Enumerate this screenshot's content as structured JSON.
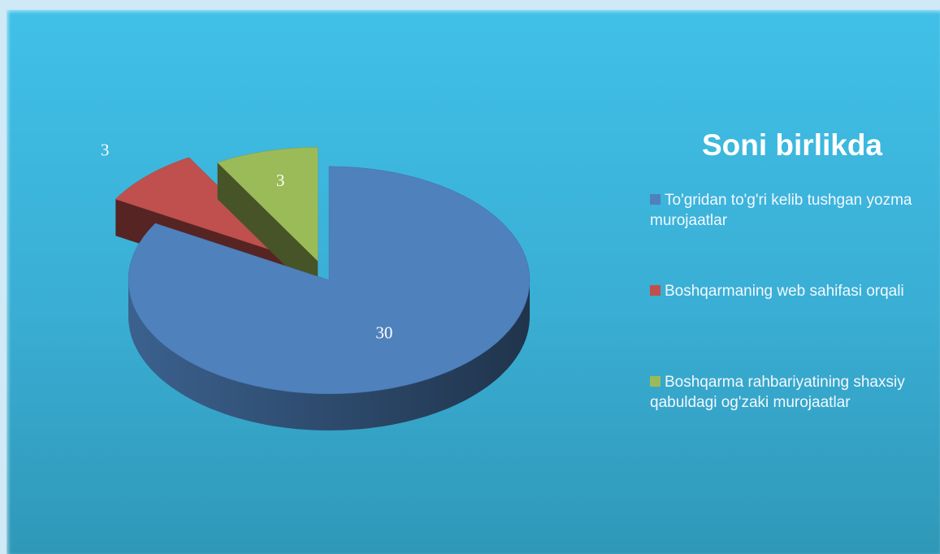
{
  "chart_data": {
    "type": "pie",
    "title": "Soni birlikda",
    "categories": [
      "To'gridan to'g'ri kelib tushgan yozma murojaatlar",
      "Boshqarmaning web sahifasi orqali",
      "Boshqarma rahbariyatining shaxsiy qabuldagi og'zaki murojaatlar"
    ],
    "values": [
      30,
      3,
      3
    ],
    "colors": [
      "#4f81bd",
      "#c0504d",
      "#9bbb59"
    ],
    "legend": "right"
  }
}
